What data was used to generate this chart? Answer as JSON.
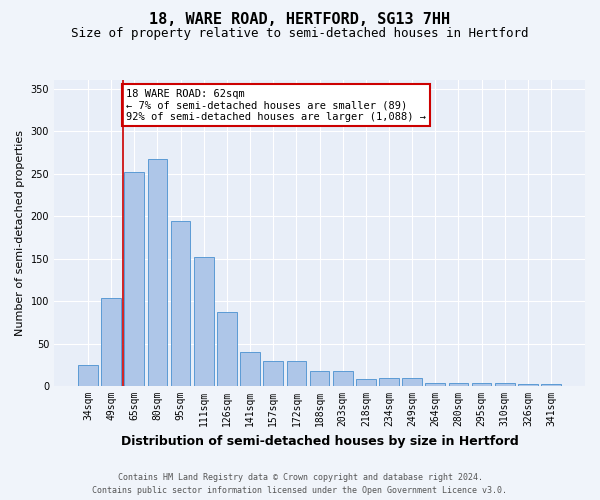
{
  "title": "18, WARE ROAD, HERTFORD, SG13 7HH",
  "subtitle": "Size of property relative to semi-detached houses in Hertford",
  "xlabel": "Distribution of semi-detached houses by size in Hertford",
  "ylabel": "Number of semi-detached properties",
  "categories": [
    "34sqm",
    "49sqm",
    "65sqm",
    "80sqm",
    "95sqm",
    "111sqm",
    "126sqm",
    "141sqm",
    "157sqm",
    "172sqm",
    "188sqm",
    "203sqm",
    "218sqm",
    "234sqm",
    "249sqm",
    "264sqm",
    "280sqm",
    "295sqm",
    "310sqm",
    "326sqm",
    "341sqm"
  ],
  "values": [
    25,
    104,
    252,
    267,
    194,
    152,
    87,
    40,
    30,
    30,
    18,
    18,
    8,
    9,
    9,
    4,
    4,
    4,
    4,
    2,
    3
  ],
  "bar_color": "#aec6e8",
  "bar_edge_color": "#5b9bd5",
  "annotation_box_text": "18 WARE ROAD: 62sqm\n← 7% of semi-detached houses are smaller (89)\n92% of semi-detached houses are larger (1,088) →",
  "vline_x_index": 1.5,
  "ylim": [
    0,
    360
  ],
  "yticks": [
    0,
    50,
    100,
    150,
    200,
    250,
    300,
    350
  ],
  "footer_line1": "Contains HM Land Registry data © Crown copyright and database right 2024.",
  "footer_line2": "Contains public sector information licensed under the Open Government Licence v3.0.",
  "bg_color": "#f0f4fa",
  "plot_bg_color": "#e8eef8",
  "grid_color": "#ffffff",
  "vline_color": "#cc0000",
  "annotation_border_color": "#cc0000",
  "title_fontsize": 11,
  "subtitle_fontsize": 9,
  "xlabel_fontsize": 9,
  "ylabel_fontsize": 8,
  "tick_fontsize": 7,
  "annotation_fontsize": 7.5,
  "footer_fontsize": 6
}
